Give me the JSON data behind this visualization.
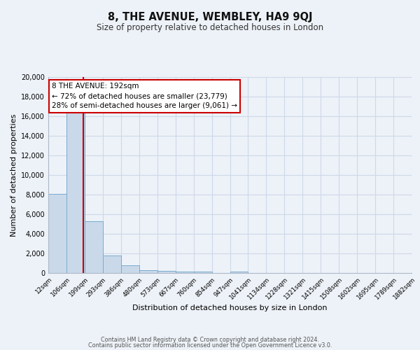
{
  "title": "8, THE AVENUE, WEMBLEY, HA9 9QJ",
  "subtitle": "Size of property relative to detached houses in London",
  "xlabel": "Distribution of detached houses by size in London",
  "ylabel": "Number of detached properties",
  "bin_labels": [
    "12sqm",
    "106sqm",
    "199sqm",
    "293sqm",
    "386sqm",
    "480sqm",
    "573sqm",
    "667sqm",
    "760sqm",
    "854sqm",
    "947sqm",
    "1041sqm",
    "1134sqm",
    "1228sqm",
    "1321sqm",
    "1415sqm",
    "1508sqm",
    "1602sqm",
    "1695sqm",
    "1789sqm",
    "1882sqm"
  ],
  "bar_values": [
    8100,
    16600,
    5300,
    1800,
    800,
    300,
    200,
    150,
    130,
    0,
    120,
    0,
    0,
    0,
    0,
    0,
    0,
    0,
    0,
    0
  ],
  "bar_color": "#c9d9ea",
  "bar_edge_color": "#7aabcf",
  "ylim": [
    0,
    20000
  ],
  "yticks": [
    0,
    2000,
    4000,
    6000,
    8000,
    10000,
    12000,
    14000,
    16000,
    18000,
    20000
  ],
  "annotation_title": "8 THE AVENUE: 192sqm",
  "annotation_line1": "← 72% of detached houses are smaller (23,779)",
  "annotation_line2": "28% of semi-detached houses are larger (9,061) →",
  "annotation_box_color": "#ffffff",
  "annotation_box_edge": "#cc0000",
  "grid_color": "#cdd8e8",
  "bg_color": "#edf2f8",
  "footer1": "Contains HM Land Registry data © Crown copyright and database right 2024.",
  "footer2": "Contains public sector information licensed under the Open Government Licence v3.0."
}
